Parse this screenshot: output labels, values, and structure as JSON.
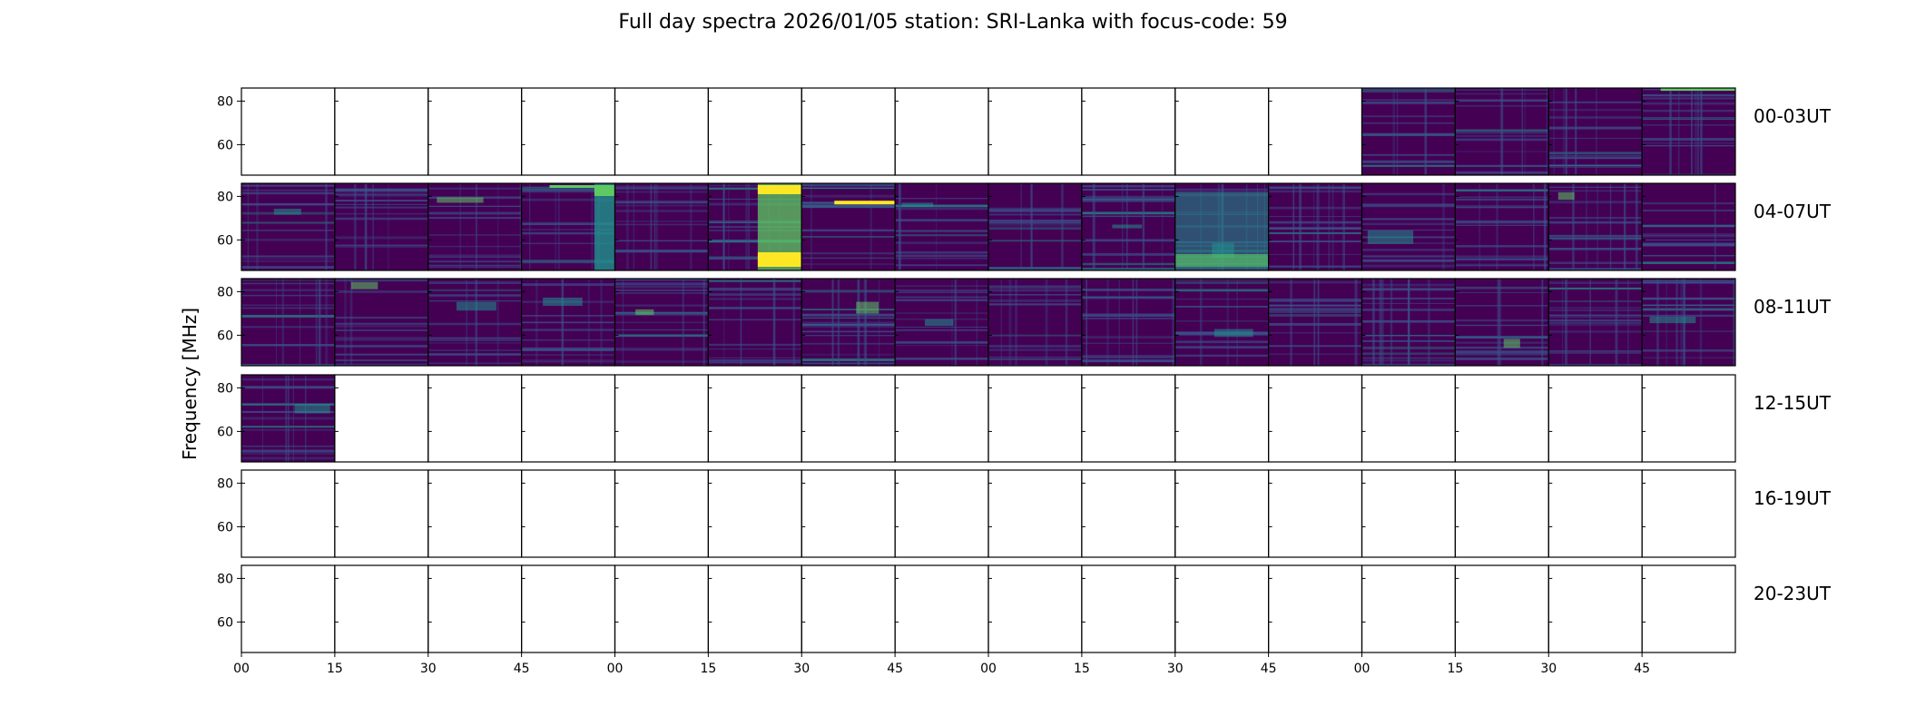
{
  "chart_data": {
    "type": "heatmap",
    "title": "Full day spectra 2026/01/05 station: SRI-Lanka with focus-code: 59",
    "ylabel": "Frequency [MHz]",
    "xlabel": "",
    "ylim": [
      46,
      86
    ],
    "yticks": [
      60,
      80
    ],
    "xticks": [
      "00",
      "15",
      "30",
      "45",
      "00",
      "15",
      "30",
      "45",
      "00",
      "15",
      "30",
      "45",
      "00",
      "15",
      "30",
      "45"
    ],
    "colormap": "viridis",
    "panels_per_row": 16,
    "panel_minutes": 15,
    "rows": [
      {
        "label": "00-03UT",
        "available": [
          0,
          0,
          0,
          0,
          0,
          0,
          0,
          0,
          0,
          0,
          0,
          0,
          1,
          1,
          1,
          1
        ]
      },
      {
        "label": "04-07UT",
        "available": [
          1,
          1,
          1,
          1,
          1,
          1,
          1,
          1,
          1,
          1,
          1,
          1,
          1,
          1,
          1,
          1
        ]
      },
      {
        "label": "08-11UT",
        "available": [
          1,
          1,
          1,
          1,
          1,
          1,
          1,
          1,
          1,
          1,
          1,
          1,
          1,
          1,
          1,
          1
        ]
      },
      {
        "label": "12-15UT",
        "available": [
          1,
          0,
          0,
          0,
          0,
          0,
          0,
          0,
          0,
          0,
          0,
          0,
          0,
          0,
          0,
          0
        ]
      },
      {
        "label": "16-19UT",
        "available": [
          0,
          0,
          0,
          0,
          0,
          0,
          0,
          0,
          0,
          0,
          0,
          0,
          0,
          0,
          0,
          0
        ]
      },
      {
        "label": "20-23UT",
        "available": [
          0,
          0,
          0,
          0,
          0,
          0,
          0,
          0,
          0,
          0,
          0,
          0,
          0,
          0,
          0,
          0
        ]
      }
    ]
  },
  "colors": {
    "background": "#440154",
    "mid": "#3b528b",
    "teal": "#21918c",
    "green": "#5ec962",
    "bright": "#fde725"
  }
}
